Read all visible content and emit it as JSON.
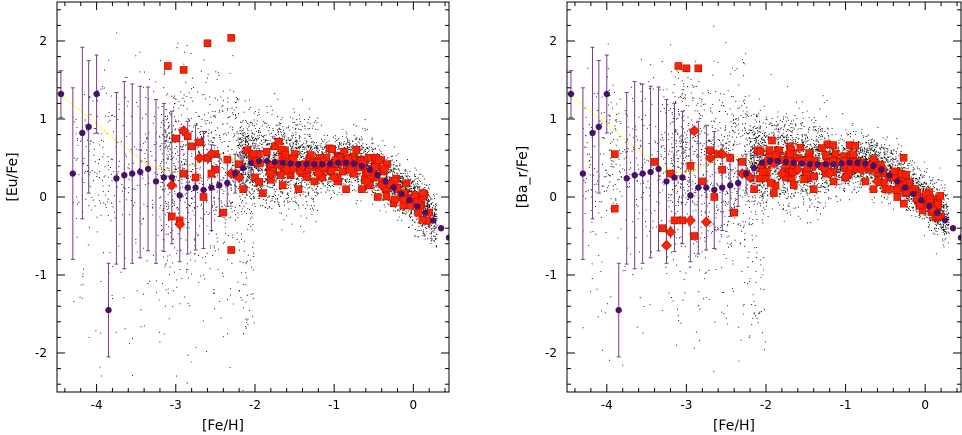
{
  "chart_data": [
    {
      "type": "scatter",
      "xlabel": "[Fe/H]",
      "ylabel": "[Eu/Fe]",
      "xlim": [
        -4.5,
        0.45
      ],
      "ylim": [
        -2.5,
        2.5
      ],
      "x_ticks": [
        -4,
        -3,
        -2,
        -1,
        0
      ],
      "y_ticks": [
        -2,
        -1,
        0,
        1,
        2
      ],
      "grid": false,
      "purple_points": {
        "x": [
          -4.45,
          -4.3,
          -4.18,
          -4.1,
          -4.0,
          -3.85,
          -3.75,
          -3.65,
          -3.55,
          -3.45,
          -3.35,
          -3.25,
          -3.15,
          -3.05,
          -2.95,
          -2.85,
          -2.75,
          -2.65,
          -2.55,
          -2.45,
          -2.35,
          -2.25,
          -2.15,
          -2.05,
          -1.95,
          -1.85,
          -1.75,
          -1.65,
          -1.55,
          -1.45,
          -1.35,
          -1.25,
          -1.15,
          -1.05,
          -0.95,
          -0.85,
          -0.75,
          -0.65,
          -0.55,
          -0.45,
          -0.35,
          -0.25,
          -0.15,
          -0.05,
          0.05,
          0.15,
          0.25,
          0.35,
          0.45
        ],
        "y": [
          1.32,
          0.3,
          0.82,
          0.9,
          1.32,
          -1.45,
          0.24,
          0.28,
          0.3,
          0.32,
          0.36,
          0.2,
          0.25,
          0.25,
          0.02,
          0.12,
          0.12,
          0.09,
          0.12,
          0.15,
          0.18,
          0.3,
          0.37,
          0.44,
          0.46,
          0.46,
          0.45,
          0.44,
          0.43,
          0.42,
          0.42,
          0.42,
          0.42,
          0.43,
          0.44,
          0.44,
          0.43,
          0.4,
          0.35,
          0.28,
          0.2,
          0.12,
          0.04,
          -0.04,
          -0.12,
          -0.2,
          -0.3,
          -0.4,
          -0.52
        ],
        "err": [
          0.3,
          1.1,
          1.1,
          0.85,
          0.5,
          0.6,
          1.1,
          1.2,
          1.15,
          1.1,
          1.05,
          1.05,
          0.95,
          0.85,
          0.85,
          0.85,
          0.8,
          0.75,
          0.55,
          0.4,
          0.3,
          0.25,
          0.2,
          0.16,
          0.12,
          0.1,
          0.08,
          0.07,
          0.06,
          0.06,
          0.05,
          0.05,
          0.05,
          0.05,
          0.05,
          0.05,
          0.05,
          0.04,
          0.04,
          0.04,
          0.04,
          0.04,
          0.03,
          0.03,
          0.03,
          0.03,
          0.03,
          0.03,
          0.03
        ]
      },
      "yellow_curve": {
        "x": [
          -4.5,
          -4.2,
          -3.9,
          -3.6,
          -3.4,
          -3.2,
          -3.05,
          -2.9,
          -2.75,
          -2.6,
          -2.45,
          -2.3,
          -2.1,
          -1.9,
          -1.7,
          -1.5,
          -1.3,
          -1.1,
          -0.9,
          -0.7,
          -0.5,
          -0.3,
          -0.1,
          0.1,
          0.3
        ],
        "y": [
          1.35,
          1.1,
          0.85,
          0.6,
          0.45,
          0.35,
          0.3,
          0.33,
          0.42,
          0.5,
          0.55,
          0.5,
          0.45,
          0.47,
          0.5,
          0.48,
          0.45,
          0.44,
          0.45,
          0.42,
          0.32,
          0.2,
          0.05,
          -0.12,
          -0.32
        ]
      },
      "red_squares": {
        "x": [
          -3.1,
          -2.9,
          -2.6,
          -2.3,
          -3.0,
          -2.85,
          -2.8,
          -2.7,
          -2.6,
          -2.5,
          -2.35,
          -2.2,
          -2.1,
          -1.95,
          -1.85,
          -1.75,
          -1.6,
          -1.5,
          -1.4,
          -1.3,
          -1.2,
          -1.1,
          -1.0,
          -0.9,
          -0.8,
          -0.7,
          -0.6,
          -0.5,
          -0.4,
          -0.3,
          -0.2,
          -0.1,
          0.0,
          0.1,
          0.2,
          -2.9,
          -2.75,
          -2.5,
          -2.25,
          -2.0,
          -1.8,
          -1.55,
          -1.35,
          -1.15,
          -0.95,
          -0.75,
          -0.55,
          -0.35,
          -0.15,
          0.05,
          -2.95,
          -2.65,
          -2.4,
          -2.15,
          -1.9,
          -1.65,
          -1.45,
          -1.25,
          -1.05,
          -0.85,
          -0.65,
          -0.45,
          -0.25,
          -3.05,
          -2.55,
          -2.3
        ],
        "y": [
          1.68,
          1.63,
          1.97,
          2.04,
          0.75,
          0.78,
          0.65,
          0.7,
          0.5,
          0.55,
          0.48,
          0.42,
          0.6,
          0.55,
          0.58,
          0.65,
          0.5,
          0.55,
          0.4,
          0.45,
          0.45,
          0.5,
          0.38,
          0.48,
          0.35,
          0.4,
          0.3,
          0.25,
          0.2,
          0.15,
          0.1,
          0.05,
          -0.02,
          -0.1,
          -0.2,
          0.3,
          0.25,
          0.35,
          0.3,
          0.25,
          0.22,
          0.28,
          0.3,
          0.25,
          0.2,
          0.3,
          0.15,
          0.1,
          0.0,
          -0.05,
          -0.3,
          0.0,
          -0.2,
          0.1,
          0.05,
          0.15,
          0.1,
          0.2,
          0.35,
          0.1,
          0.1,
          0.0,
          -0.08,
          -0.25,
          0.3,
          -0.68
        ]
      },
      "red_diamonds": {
        "x": [
          -2.9,
          -2.7,
          -2.55,
          -2.3,
          -2.2,
          -2.0,
          -1.8,
          -1.6,
          -1.4,
          -1.2,
          -1.0,
          -0.8,
          -0.6,
          -0.4,
          -2.95,
          -3.05
        ],
        "y": [
          0.85,
          0.5,
          0.55,
          0.3,
          0.25,
          0.45,
          0.3,
          0.35,
          0.4,
          0.3,
          0.25,
          0.35,
          0.2,
          0.15,
          -0.35,
          0.15
        ]
      }
    },
    {
      "type": "scatter",
      "xlabel": "[Fe/H]",
      "ylabel": "[Ba_r/Fe]",
      "xlim": [
        -4.5,
        0.45
      ],
      "ylim": [
        -2.5,
        2.5
      ],
      "x_ticks": [
        -4,
        -3,
        -2,
        -1,
        0
      ],
      "y_ticks": [
        -2,
        -1,
        0,
        1,
        2
      ],
      "grid": false,
      "purple_points": {
        "x": [
          -4.45,
          -4.3,
          -4.18,
          -4.1,
          -4.0,
          -3.85,
          -3.75,
          -3.65,
          -3.55,
          -3.45,
          -3.35,
          -3.25,
          -3.15,
          -3.05,
          -2.95,
          -2.85,
          -2.75,
          -2.65,
          -2.55,
          -2.45,
          -2.35,
          -2.25,
          -2.15,
          -2.05,
          -1.95,
          -1.85,
          -1.75,
          -1.65,
          -1.55,
          -1.45,
          -1.35,
          -1.25,
          -1.15,
          -1.05,
          -0.95,
          -0.85,
          -0.75,
          -0.65,
          -0.55,
          -0.45,
          -0.35,
          -0.25,
          -0.15,
          -0.05,
          0.05,
          0.15,
          0.25,
          0.35,
          0.45
        ],
        "y": [
          1.32,
          0.3,
          0.82,
          0.9,
          1.32,
          -1.45,
          0.24,
          0.28,
          0.3,
          0.32,
          0.36,
          0.2,
          0.25,
          0.25,
          0.02,
          0.12,
          0.12,
          0.09,
          0.12,
          0.15,
          0.18,
          0.3,
          0.37,
          0.44,
          0.46,
          0.46,
          0.45,
          0.44,
          0.43,
          0.42,
          0.42,
          0.42,
          0.42,
          0.43,
          0.44,
          0.44,
          0.43,
          0.4,
          0.35,
          0.28,
          0.2,
          0.12,
          0.04,
          -0.04,
          -0.12,
          -0.2,
          -0.3,
          -0.4,
          -0.52
        ],
        "err": [
          0.3,
          1.1,
          1.1,
          0.85,
          0.5,
          0.6,
          1.1,
          1.2,
          1.15,
          1.1,
          1.05,
          1.05,
          0.95,
          0.85,
          0.85,
          0.85,
          0.8,
          0.75,
          0.55,
          0.4,
          0.3,
          0.25,
          0.2,
          0.16,
          0.12,
          0.1,
          0.08,
          0.07,
          0.06,
          0.06,
          0.05,
          0.05,
          0.05,
          0.05,
          0.05,
          0.05,
          0.05,
          0.04,
          0.04,
          0.04,
          0.04,
          0.04,
          0.03,
          0.03,
          0.03,
          0.03,
          0.03,
          0.03,
          0.03
        ]
      },
      "yellow_curve": {
        "x": [
          -4.5,
          -4.2,
          -3.9,
          -3.6,
          -3.4,
          -3.2,
          -3.05,
          -2.9,
          -2.75,
          -2.6,
          -2.45,
          -2.3,
          -2.1,
          -1.9,
          -1.7,
          -1.5,
          -1.3,
          -1.1,
          -0.9,
          -0.7,
          -0.5,
          -0.3,
          -0.1,
          0.1,
          0.3
        ],
        "y": [
          1.35,
          1.1,
          0.85,
          0.6,
          0.45,
          0.35,
          0.3,
          0.33,
          0.42,
          0.5,
          0.55,
          0.5,
          0.45,
          0.47,
          0.5,
          0.48,
          0.45,
          0.44,
          0.45,
          0.42,
          0.32,
          0.2,
          0.05,
          -0.12,
          -0.32
        ]
      },
      "red_squares": {
        "x": [
          -3.1,
          -3.0,
          -2.85,
          -2.7,
          -3.9,
          -3.4,
          -2.95,
          -2.6,
          -2.45,
          -2.3,
          -2.1,
          -1.95,
          -1.85,
          -1.7,
          -1.6,
          -1.45,
          -1.3,
          -1.2,
          -1.05,
          -0.9,
          -0.8,
          -0.7,
          -0.55,
          -0.45,
          -0.3,
          -0.2,
          -0.1,
          0.0,
          0.1,
          0.2,
          -3.2,
          -2.8,
          -2.55,
          -2.25,
          -2.0,
          -1.75,
          -1.5,
          -1.25,
          -1.0,
          -0.75,
          -0.5,
          -0.25,
          0.05,
          -3.3,
          -3.15,
          -2.9,
          -2.65,
          -2.4,
          -2.15,
          -1.9,
          -1.65,
          -1.4,
          -1.15,
          -0.95,
          -0.65,
          -0.35,
          -0.05,
          -3.9,
          -3.05
        ],
        "y": [
          1.68,
          1.65,
          1.65,
          0.6,
          0.55,
          0.45,
          0.4,
          0.55,
          0.5,
          0.45,
          0.6,
          0.55,
          0.6,
          0.65,
          0.5,
          0.55,
          0.4,
          0.45,
          0.45,
          0.5,
          0.38,
          0.35,
          0.3,
          0.25,
          0.2,
          0.15,
          0.05,
          -0.05,
          -0.15,
          -0.25,
          0.3,
          0.2,
          0.35,
          0.3,
          0.25,
          0.25,
          0.3,
          0.3,
          0.25,
          0.2,
          0.1,
          0.05,
          -0.08,
          -0.4,
          -0.3,
          -0.5,
          0.0,
          -0.2,
          0.1,
          0.05,
          0.15,
          0.1,
          0.2,
          0.35,
          0.1,
          0.0,
          -0.1,
          -0.15,
          -0.3
        ]
      },
      "red_diamonds": {
        "x": [
          -2.9,
          -2.7,
          -2.55,
          -2.3,
          -2.2,
          -2.0,
          -1.8,
          -1.6,
          -1.4,
          -1.2,
          -1.0,
          -0.8,
          -0.6,
          -3.2,
          -3.25,
          -2.95,
          -2.75
        ],
        "y": [
          0.85,
          0.5,
          0.55,
          0.3,
          0.25,
          0.45,
          0.3,
          0.35,
          0.4,
          0.3,
          0.25,
          0.35,
          0.2,
          -0.45,
          -0.62,
          -0.3,
          -0.32
        ]
      }
    }
  ],
  "colors": {
    "red": "#ff2200",
    "red_edge": "#b01000",
    "purple": "#4a0f6b",
    "errorbar": "#7a3a92",
    "yellow": "#ffff66",
    "black_dots": "#000000"
  }
}
